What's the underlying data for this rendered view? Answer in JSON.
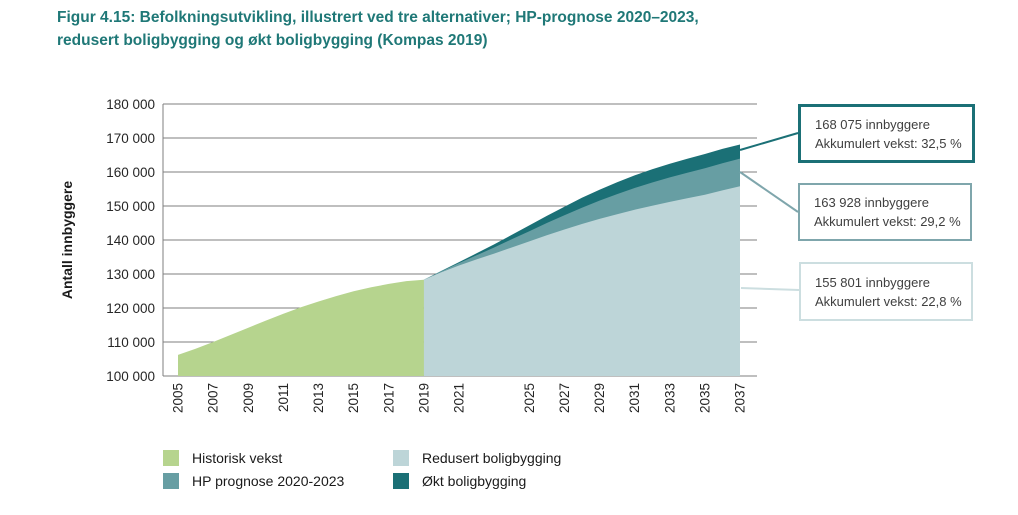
{
  "title": {
    "line1": "Figur 4.15: Befolkningsutvikling, illustrert ved tre alternativer; HP-prognose 2020–2023,",
    "line2": "redusert boligbygging og økt boligbygging (Kompas 2019)"
  },
  "y_axis": {
    "title": "Antall innbyggere",
    "min": 100000,
    "max": 180000,
    "step": 10000,
    "tick_labels": [
      "100 000",
      "110 000",
      "120 000",
      "130 000",
      "140 000",
      "150 000",
      "160 000",
      "170 000",
      "180 000"
    ]
  },
  "x_axis": {
    "tick_years": [
      2005,
      2007,
      2009,
      2011,
      2013,
      2015,
      2017,
      2019,
      2021,
      2025,
      2027,
      2029,
      2031,
      2033,
      2035,
      2037
    ],
    "tick_labels": [
      "2005",
      "2007",
      "2009",
      "2011",
      "2013",
      "2015",
      "2017",
      "2019",
      "2021",
      "2025",
      "2027",
      "2029",
      "2031",
      "2033",
      "2035",
      "2037"
    ]
  },
  "chart_data": {
    "type": "area",
    "title": "Befolkningsutvikling, illustrert ved tre alternativer",
    "xlabel": "",
    "ylabel": "Antall innbyggere",
    "ylim": [
      100000,
      180000
    ],
    "xlim": [
      2005,
      2038
    ],
    "grid": "horizontal",
    "legend_position": "bottom",
    "series": [
      {
        "key": "historisk",
        "name": "Historisk vekst",
        "color": "#b6d48e",
        "x": [
          2005,
          2006,
          2007,
          2008,
          2009,
          2010,
          2011,
          2012,
          2013,
          2014,
          2015,
          2016,
          2017,
          2018,
          2019
        ],
        "values": [
          106200,
          108000,
          110000,
          112100,
          114200,
          116300,
          118300,
          120200,
          121900,
          123500,
          124900,
          126100,
          127100,
          127900,
          128300
        ]
      },
      {
        "key": "okt",
        "name": "Økt boligbygging",
        "color": "#1b7076",
        "x": [
          2019,
          2020,
          2021,
          2022,
          2023,
          2024,
          2025,
          2026,
          2027,
          2028,
          2029,
          2030,
          2031,
          2032,
          2033,
          2034,
          2035,
          2036,
          2037
        ],
        "values": [
          128300,
          130900,
          133500,
          136100,
          138700,
          141500,
          144300,
          147100,
          149800,
          152400,
          154800,
          157000,
          159000,
          160800,
          162400,
          163900,
          165300,
          166800,
          168075
        ]
      },
      {
        "key": "hp",
        "name": "HP prognose 2020-2023",
        "color": "#679ea3",
        "x": [
          2019,
          2020,
          2021,
          2022,
          2023,
          2024,
          2025,
          2026,
          2027,
          2028,
          2029,
          2030,
          2031,
          2032,
          2033,
          2034,
          2035,
          2036,
          2037
        ],
        "values": [
          128300,
          130800,
          133200,
          135500,
          137800,
          140200,
          142600,
          145000,
          147300,
          149500,
          151600,
          153500,
          155300,
          156900,
          158400,
          159800,
          161100,
          162600,
          163928
        ]
      },
      {
        "key": "redusert",
        "name": "Redusert boligbygging",
        "color": "#bdd5d8",
        "x": [
          2019,
          2020,
          2021,
          2022,
          2023,
          2024,
          2025,
          2026,
          2027,
          2028,
          2029,
          2030,
          2031,
          2032,
          2033,
          2034,
          2035,
          2036,
          2037
        ],
        "values": [
          128300,
          130500,
          132500,
          134300,
          136000,
          137800,
          139600,
          141400,
          143100,
          144700,
          146200,
          147600,
          148900,
          150100,
          151200,
          152300,
          153300,
          154600,
          155801
        ]
      }
    ]
  },
  "legend": {
    "items": [
      {
        "key": "historisk",
        "label": "Historisk vekst",
        "color": "#b6d48e"
      },
      {
        "key": "hp",
        "label": "HP prognose 2020-2023",
        "color": "#679ea3"
      },
      {
        "key": "redusert",
        "label": "Redusert boligbygging",
        "color": "#bdd5d8"
      },
      {
        "key": "okt",
        "label": "Økt boligbygging",
        "color": "#1b7076"
      }
    ]
  },
  "annotations": [
    {
      "line1": "168 075 innbyggere",
      "line2": "Akkumulert vekst: 32,5 %",
      "value": 168075,
      "growth": "32,5 %",
      "border_color": "#1b7076"
    },
    {
      "line1": "163 928 innbyggere",
      "line2": "Akkumulert vekst: 29,2 %",
      "value": 163928,
      "growth": "29,2 %",
      "border_color": "#7fa6ac"
    },
    {
      "line1": "155 801 innbyggere",
      "line2": "Akkumulert vekst: 22,8 %",
      "value": 155801,
      "growth": "22,8 %",
      "border_color": "#ccdee0"
    }
  ],
  "colors": {
    "title_text": "#1f7877",
    "axis_text": "#262626",
    "gridline": "#7f7f7f",
    "annotation_text": "#3f3f3f"
  }
}
